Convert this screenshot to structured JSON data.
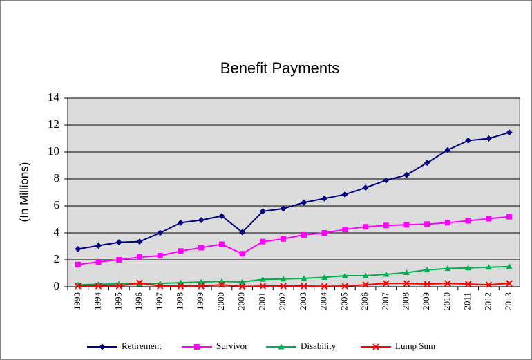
{
  "chart_data": {
    "type": "line",
    "title": "Benefit Payments",
    "y_label": "(In Millions)",
    "categories": [
      "1993",
      "1994",
      "1995",
      "1996",
      "1997",
      "1998",
      "1999",
      "2000",
      "2000",
      "2001",
      "2002",
      "2003",
      "2004",
      "2005",
      "2006",
      "2007",
      "2008",
      "2009",
      "2010",
      "2011",
      "2012",
      "2013"
    ],
    "series": [
      {
        "name": "Retirement",
        "color": "#000080",
        "marker": "diamond",
        "values": [
          2.8,
          3.05,
          3.3,
          3.35,
          4.0,
          4.75,
          4.95,
          5.25,
          4.05,
          5.6,
          5.8,
          6.25,
          6.55,
          6.85,
          7.35,
          7.9,
          8.3,
          9.2,
          10.15,
          10.85,
          11.0,
          11.45
        ]
      },
      {
        "name": "Survivor",
        "color": "#ff00ff",
        "marker": "square",
        "values": [
          1.65,
          1.85,
          2.0,
          2.2,
          2.3,
          2.65,
          2.9,
          3.15,
          2.45,
          3.35,
          3.55,
          3.85,
          4.0,
          4.25,
          4.45,
          4.55,
          4.6,
          4.65,
          4.75,
          4.9,
          5.05,
          5.2
        ]
      },
      {
        "name": "Disability",
        "color": "#00b050",
        "marker": "triangle",
        "values": [
          0.15,
          0.18,
          0.22,
          0.2,
          0.25,
          0.3,
          0.35,
          0.4,
          0.35,
          0.55,
          0.58,
          0.62,
          0.7,
          0.82,
          0.82,
          0.92,
          1.05,
          1.25,
          1.35,
          1.4,
          1.45,
          1.5
        ]
      },
      {
        "name": "Lump Sum",
        "color": "#ff0000",
        "marker": "x",
        "values": [
          0.05,
          0.05,
          0.05,
          0.3,
          0.05,
          0.05,
          0.05,
          0.15,
          0.02,
          0.05,
          0.05,
          0.05,
          0.03,
          0.05,
          0.15,
          0.25,
          0.25,
          0.2,
          0.25,
          0.2,
          0.15,
          0.25
        ]
      }
    ],
    "ylim": [
      0,
      14
    ],
    "yticks": [
      0,
      2,
      4,
      6,
      8,
      10,
      12,
      14
    ],
    "grid": true,
    "legend": "bottom"
  }
}
